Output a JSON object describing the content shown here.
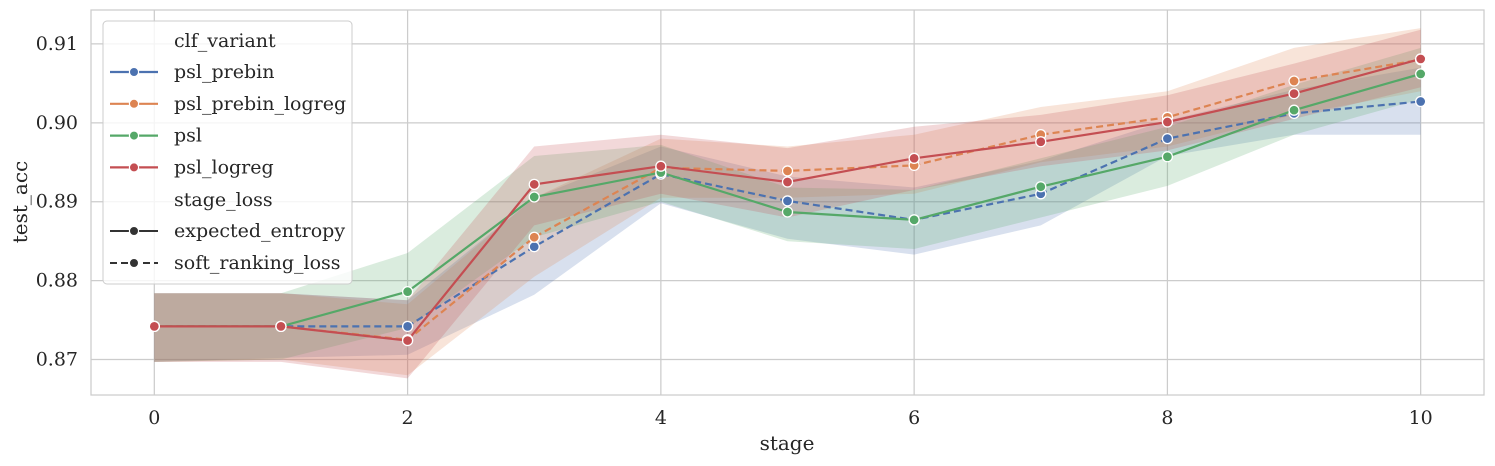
{
  "chart_data": {
    "type": "line",
    "xlabel": "stage",
    "ylabel": "test_acc",
    "x": [
      0,
      1,
      2,
      3,
      4,
      5,
      6,
      7,
      8,
      9,
      10
    ],
    "xlim": [
      -0.5,
      10.5
    ],
    "ylim": [
      0.8655,
      0.9143
    ],
    "x_ticks": [
      0,
      2,
      4,
      6,
      8,
      10
    ],
    "y_ticks": [
      0.87,
      0.88,
      0.89,
      0.9,
      0.91
    ],
    "x_tick_labels": [
      "0",
      "2",
      "4",
      "6",
      "8",
      "10"
    ],
    "y_tick_labels": [
      "0.87",
      "0.88",
      "0.89",
      "0.90",
      "0.91"
    ],
    "grid": true,
    "legend_position": "upper-left",
    "legend": {
      "hue_title": "clf_variant",
      "style_title": "stage_loss",
      "hue_entries": [
        {
          "label": "psl_prebin",
          "color": "#4c72b0"
        },
        {
          "label": "psl_prebin_logreg",
          "color": "#dd8452"
        },
        {
          "label": "psl",
          "color": "#55a868"
        },
        {
          "label": "psl_logreg",
          "color": "#c44e52"
        }
      ],
      "style_entries": [
        {
          "label": "expected_entropy",
          "dash": "solid"
        },
        {
          "label": "soft_ranking_loss",
          "dash": "dashed"
        }
      ]
    },
    "series": [
      {
        "name": "psl_prebin",
        "color": "#4c72b0",
        "dash": "dashed",
        "values": [
          0.8742,
          0.8742,
          0.8742,
          0.8843,
          0.8935,
          0.8901,
          0.8877,
          0.891,
          0.898,
          0.9012,
          0.9027
        ],
        "lower": [
          0.8697,
          0.8702,
          0.8706,
          0.8782,
          0.8898,
          0.8853,
          0.8833,
          0.887,
          0.8958,
          0.8985,
          0.8985
        ],
        "upper": [
          0.8784,
          0.8784,
          0.8775,
          0.8905,
          0.897,
          0.8932,
          0.8918,
          0.8952,
          0.9003,
          0.9042,
          0.907
        ]
      },
      {
        "name": "psl_prebin_logreg",
        "color": "#dd8452",
        "dash": "dashed",
        "values": [
          0.8742,
          0.8742,
          0.8725,
          0.8855,
          0.8943,
          0.8939,
          0.8946,
          0.8985,
          0.9007,
          0.9053,
          0.908
        ],
        "lower": [
          0.8697,
          0.87,
          0.868,
          0.8805,
          0.8905,
          0.8905,
          0.891,
          0.895,
          0.897,
          0.901,
          0.904
        ],
        "upper": [
          0.8784,
          0.8784,
          0.877,
          0.8905,
          0.898,
          0.897,
          0.8985,
          0.902,
          0.904,
          0.9095,
          0.912
        ]
      },
      {
        "name": "psl",
        "color": "#55a868",
        "dash": "solid",
        "values": [
          0.8742,
          0.8742,
          0.8786,
          0.8906,
          0.8937,
          0.8887,
          0.8877,
          0.8919,
          0.8957,
          0.9016,
          0.9062
        ],
        "lower": [
          0.8697,
          0.87,
          0.874,
          0.8855,
          0.89,
          0.885,
          0.884,
          0.888,
          0.892,
          0.8985,
          0.903
        ],
        "upper": [
          0.8784,
          0.8784,
          0.8835,
          0.8958,
          0.8972,
          0.8918,
          0.8915,
          0.8955,
          0.8995,
          0.9048,
          0.9095
        ]
      },
      {
        "name": "psl_logreg",
        "color": "#c44e52",
        "dash": "solid",
        "values": [
          0.8742,
          0.8742,
          0.8724,
          0.8922,
          0.8945,
          0.8925,
          0.8955,
          0.8976,
          0.9001,
          0.9037,
          0.9081
        ],
        "lower": [
          0.8697,
          0.8697,
          0.8676,
          0.887,
          0.891,
          0.888,
          0.8915,
          0.8945,
          0.8965,
          0.9005,
          0.9045
        ],
        "upper": [
          0.8784,
          0.8784,
          0.8775,
          0.897,
          0.8985,
          0.8968,
          0.8995,
          0.901,
          0.9035,
          0.9075,
          0.9118
        ]
      }
    ]
  }
}
